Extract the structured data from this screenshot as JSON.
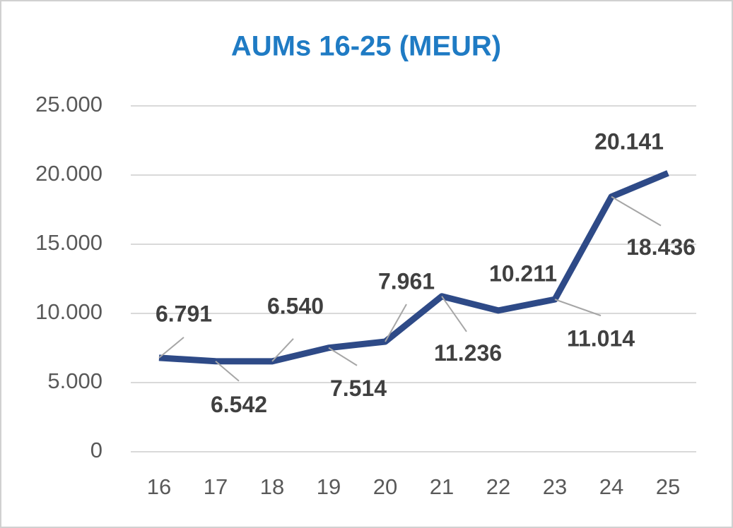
{
  "chart_data": {
    "type": "line",
    "title": "AUMs 16-25 (MEUR)",
    "categories": [
      "16",
      "17",
      "18",
      "19",
      "20",
      "21",
      "22",
      "23",
      "24",
      "25"
    ],
    "series": [
      {
        "name": "AUMs",
        "color": "#2e4a87",
        "values": [
          6791,
          6542,
          6540,
          7514,
          7961,
          11236,
          10211,
          11014,
          18436,
          20141
        ],
        "value_labels": [
          "6.791",
          "6.542",
          "6.540",
          "7.514",
          "7.961",
          "11.236",
          "10.211",
          "11.014",
          "18.436",
          "20.141"
        ]
      }
    ],
    "ylim": [
      0,
      25000
    ],
    "yticks": [
      0,
      {
        "value": 5000,
        "label": "5.000"
      },
      {
        "value": 10000,
        "label": "10.000"
      },
      {
        "value": 15000,
        "label": "15.000"
      },
      {
        "value": 20000,
        "label": "20.000"
      },
      {
        "value": 25000,
        "label": "25.000"
      }
    ],
    "grid": true
  }
}
